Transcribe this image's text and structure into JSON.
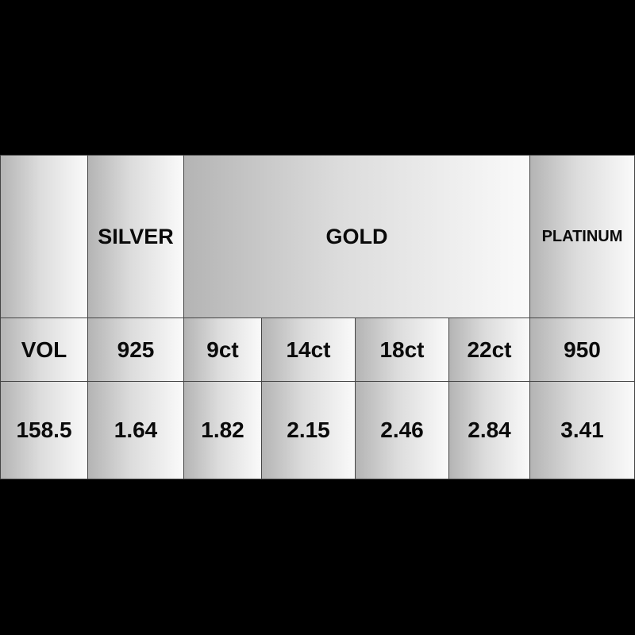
{
  "header": {
    "blank": "",
    "silver": "SILVER",
    "gold": "GOLD",
    "platinum": "PLATINUM"
  },
  "grades": [
    "VOL",
    "925",
    "9ct",
    "14ct",
    "18ct",
    "22ct",
    "950"
  ],
  "values": [
    "158.5",
    "1.64",
    "1.82",
    "2.15",
    "2.46",
    "2.84",
    "3.41"
  ]
}
